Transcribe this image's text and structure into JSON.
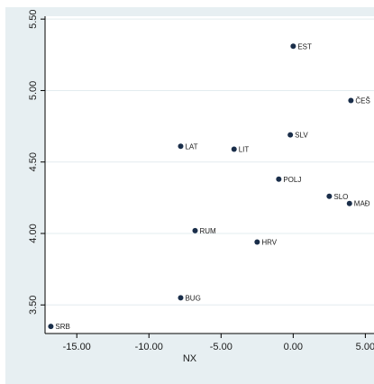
{
  "chart_data": {
    "type": "scatter",
    "title": "",
    "xlabel": "NX",
    "ylabel": "",
    "xlim": [
      -17.2,
      5.6
    ],
    "ylim": [
      3.3,
      5.52
    ],
    "x_ticks": [
      -15.0,
      -10.0,
      -5.0,
      0.0,
      5.0
    ],
    "x_tick_labels": [
      "-15.00",
      "-10.00",
      "-5.00",
      "0.00",
      "5.00"
    ],
    "y_ticks": [
      3.5,
      4.0,
      4.5,
      5.0,
      5.5
    ],
    "y_tick_labels": [
      "3.50",
      "4.00",
      "4.50",
      "5.00",
      "5.50"
    ],
    "grid": "horizontal",
    "colors": {
      "background": "#ffffff",
      "outer_background": "#e7eff2",
      "plot_background": "#ffffff",
      "marker": "#1a2e4a",
      "gridline": "#e3ecef",
      "axis": "#000000"
    },
    "points": [
      {
        "label": "EST",
        "x": 0.0,
        "y": 5.31
      },
      {
        "label": "ČEŠ",
        "x": 4.0,
        "y": 4.93
      },
      {
        "label": "SLV",
        "x": -0.2,
        "y": 4.69
      },
      {
        "label": "LAT",
        "x": -7.8,
        "y": 4.61
      },
      {
        "label": "LIT",
        "x": -4.1,
        "y": 4.59
      },
      {
        "label": "POLJ",
        "x": -1.0,
        "y": 4.38
      },
      {
        "label": "SLO",
        "x": 2.5,
        "y": 4.26
      },
      {
        "label": "MAĐ",
        "x": 3.9,
        "y": 4.21
      },
      {
        "label": "RUM",
        "x": -6.8,
        "y": 4.02
      },
      {
        "label": "HRV",
        "x": -2.5,
        "y": 3.94
      },
      {
        "label": "BUG",
        "x": -7.8,
        "y": 3.55
      },
      {
        "label": "SRB",
        "x": -16.8,
        "y": 3.35
      }
    ]
  }
}
